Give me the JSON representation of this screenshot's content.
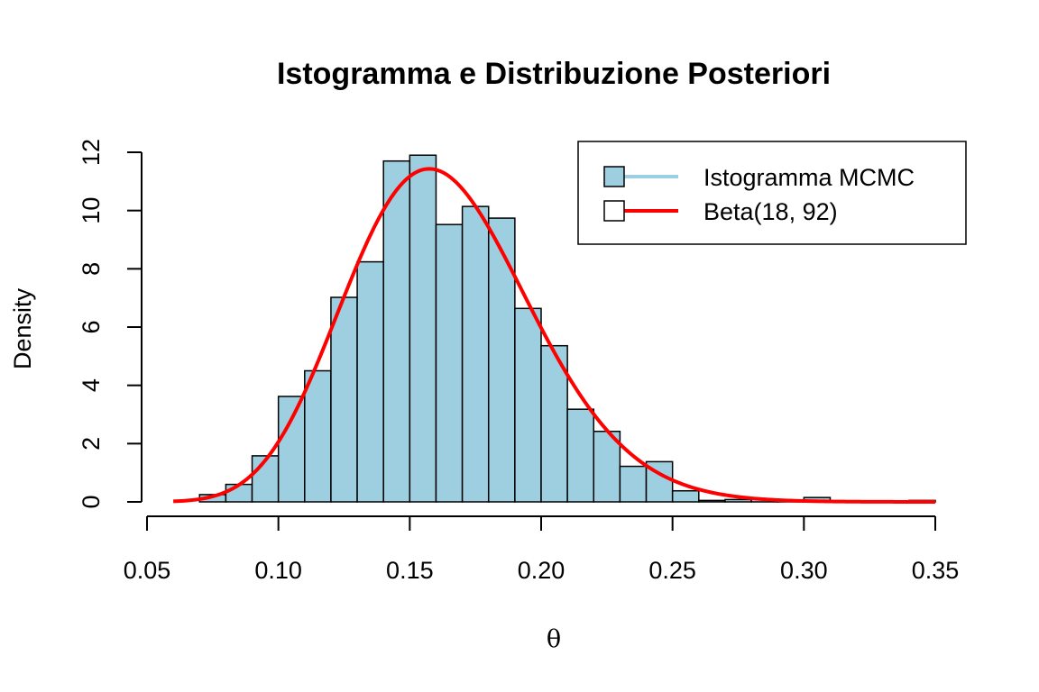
{
  "chart_data": {
    "type": "bar",
    "title": "Istogramma e Distribuzione Posteriori",
    "xlabel": "θ",
    "ylabel": "Density",
    "xlim": [
      0.05,
      0.35
    ],
    "ylim": [
      0,
      12
    ],
    "x_ticks": [
      0.05,
      0.1,
      0.15,
      0.2,
      0.25,
      0.3,
      0.35
    ],
    "x_tick_labels": [
      "0.05",
      "0.10",
      "0.15",
      "0.20",
      "0.25",
      "0.30",
      "0.35"
    ],
    "y_ticks": [
      0,
      2,
      4,
      6,
      8,
      10,
      12
    ],
    "y_tick_labels": [
      "0",
      "2",
      "4",
      "6",
      "8",
      "10",
      "12"
    ],
    "histogram": {
      "name": "Istogramma MCMC",
      "bin_width": 0.01,
      "bin_starts": [
        0.07,
        0.08,
        0.09,
        0.1,
        0.11,
        0.12,
        0.13,
        0.14,
        0.15,
        0.16,
        0.17,
        0.18,
        0.19,
        0.2,
        0.21,
        0.22,
        0.23,
        0.24,
        0.25,
        0.26,
        0.27,
        0.28,
        0.29,
        0.3,
        0.31,
        0.32,
        0.33,
        0.34
      ],
      "densities": [
        0.25,
        0.6,
        1.58,
        3.62,
        4.5,
        7.02,
        8.24,
        11.7,
        11.9,
        9.52,
        10.14,
        9.74,
        6.64,
        5.36,
        3.18,
        2.42,
        1.22,
        1.38,
        0.38,
        0.05,
        0.08,
        0.1,
        0.03,
        0.15,
        0.03,
        0.02,
        0.03,
        0.05
      ],
      "fill": "#9dcfe0",
      "edge": "#000000"
    },
    "curve": {
      "name": "Beta(18, 92)",
      "alpha": 18,
      "beta": 92,
      "x_range": [
        0.06,
        0.35
      ],
      "color": "#ff0000"
    },
    "legend": {
      "position": "top-right",
      "entries": [
        {
          "label": "Istogramma MCMC",
          "fill": "#9dcfe0",
          "line": "#9dcfe0"
        },
        {
          "label": "Beta(18, 92)",
          "fill": "#ffffff",
          "line": "#ff0000"
        }
      ]
    }
  }
}
